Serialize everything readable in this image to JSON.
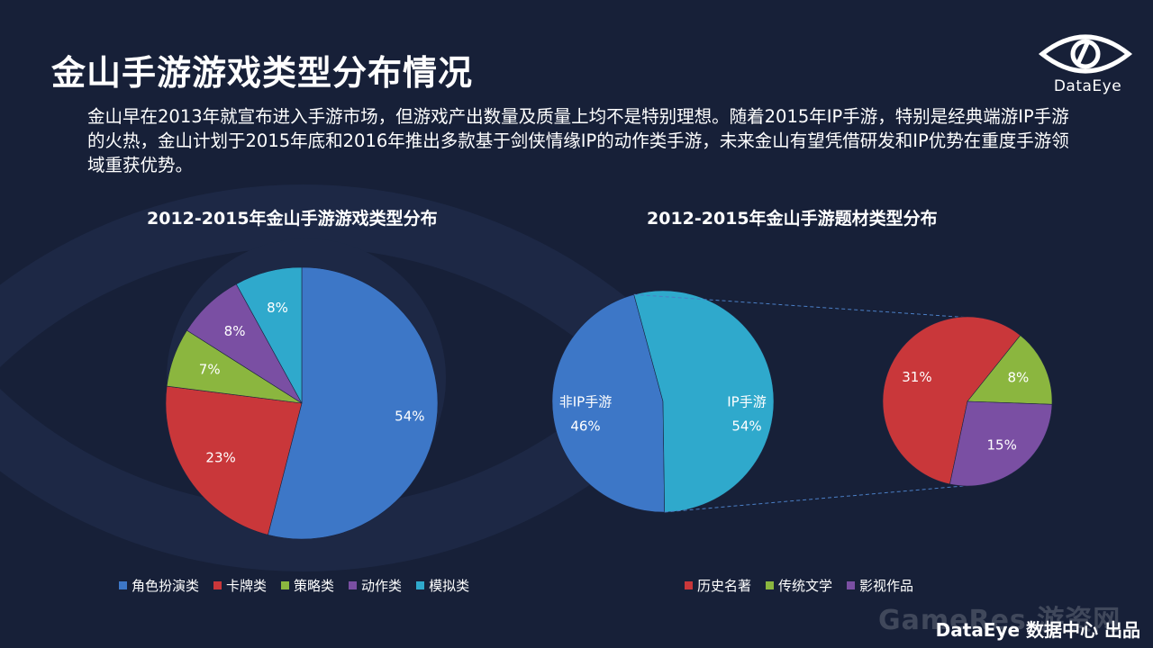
{
  "title": "金山手游游戏类型分布情况",
  "logo_text": "DataEye",
  "description": "金山早在2013年就宣布进入手游市场，但游戏产出数量及质量上均不是特别理想。随着2015年IP手游，特别是经典端游IP手游的火热，金山计划于2015年底和2016年推出多款基于剑侠情缘IP的动作类手游，未来金山有望凭借研发和IP优势在重度手游领域重获优势。",
  "footer": "DataEye 数据中心 出品",
  "watermark": "GameRes 游资网",
  "colors": {
    "background": "#172038",
    "blue": "#3d77c7",
    "red": "#c9373a",
    "green": "#8bb63f",
    "purple": "#7a4fa3",
    "cyan": "#2fa9cc"
  },
  "chart_data": [
    {
      "type": "pie",
      "title": "2012-2015年金山手游游戏类型分布",
      "slices": [
        {
          "name": "角色扮演类",
          "value": 54,
          "label": "54%",
          "color": "#3d77c7"
        },
        {
          "name": "卡牌类",
          "value": 23,
          "label": "23%",
          "color": "#c9373a"
        },
        {
          "name": "策略类",
          "value": 7,
          "label": "7%",
          "color": "#8bb63f"
        },
        {
          "name": "动作类",
          "value": 8,
          "label": "8%",
          "color": "#7a4fa3"
        },
        {
          "name": "模拟类",
          "value": 8,
          "label": "8%",
          "color": "#2fa9cc"
        }
      ],
      "legend": [
        "角色扮演类",
        "卡牌类",
        "策略类",
        "动作类",
        "模拟类"
      ],
      "legend_position": "bottom"
    },
    {
      "type": "pie-of-pie",
      "title": "2012-2015年金山手游题材类型分布",
      "main_slices": [
        {
          "name": "非IP手游",
          "value": 46,
          "label": "46%",
          "color": "#3d77c7"
        },
        {
          "name": "IP手游",
          "value": 54,
          "label": "54%",
          "color": "#2fa9cc"
        }
      ],
      "breakdown_of": "IP手游",
      "sub_slices": [
        {
          "name": "历史名著",
          "value": 31,
          "label": "31%",
          "color": "#c9373a"
        },
        {
          "name": "传统文学",
          "value": 8,
          "label": "8%",
          "color": "#8bb63f"
        },
        {
          "name": "影视作品",
          "value": 15,
          "label": "15%",
          "color": "#7a4fa3"
        }
      ],
      "legend": [
        "历史名著",
        "传统文学",
        "影视作品"
      ],
      "legend_position": "bottom"
    }
  ]
}
